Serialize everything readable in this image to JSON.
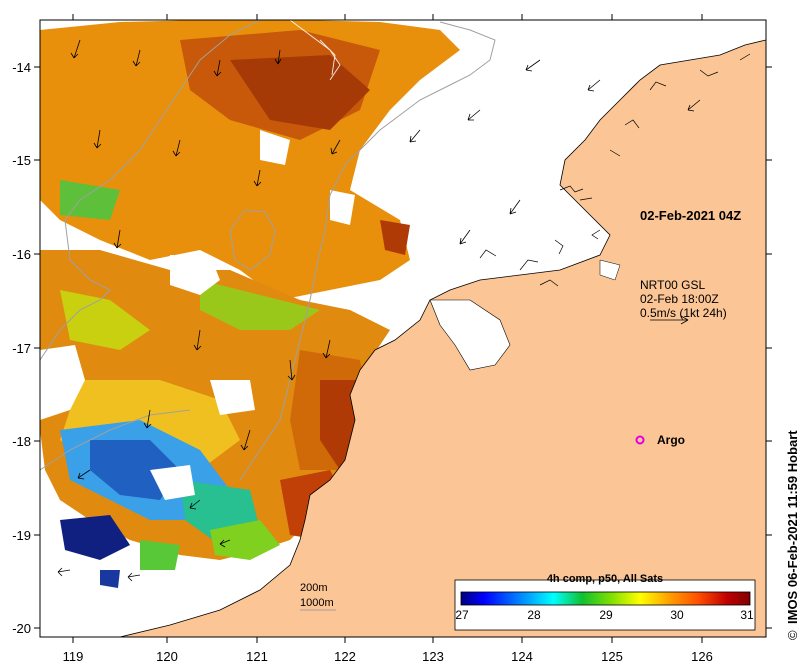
{
  "map": {
    "lat_axis": {
      "ticks": [
        "-14",
        "-15",
        "-16",
        "-17",
        "-18",
        "-19",
        "-20"
      ]
    },
    "lon_axis": {
      "ticks": [
        "119",
        "120",
        "121",
        "122",
        "123",
        "124",
        "125",
        "126"
      ]
    },
    "snapshot_label": "02-Feb-2021 04Z",
    "current_legend": {
      "product": "NRT00 GSL",
      "time": "02-Feb 18:00Z",
      "scale": "0.5m/s (1kt 24h)"
    },
    "argo_label": "Argo",
    "bathymetry_labels": [
      "200m",
      "1000m"
    ],
    "credit": "IMOS 06-Feb-2021 11:59 Hobart",
    "copyright_symbol": "©"
  },
  "colorbar": {
    "title": "4h comp, p50, All Sats",
    "ticks": [
      "27",
      "28",
      "29",
      "30",
      "31"
    ],
    "range": [
      27,
      31
    ],
    "colors": [
      "#00007f",
      "#0000ff",
      "#0080ff",
      "#00ffff",
      "#10c030",
      "#80e000",
      "#ffff00",
      "#ffa000",
      "#ff5000",
      "#c00000",
      "#800000"
    ]
  },
  "colors": {
    "land": "#fbc595",
    "isobath": "#a0a0a0",
    "argo": "#e000e0"
  }
}
